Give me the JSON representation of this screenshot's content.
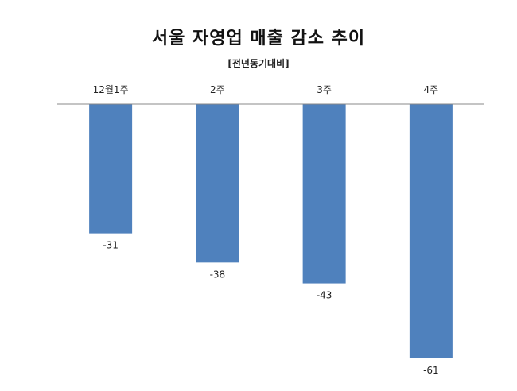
{
  "chart_data": {
    "type": "bar",
    "title": "서울 자영업 매출 감소 추이",
    "subtitle": "[전년동기대비]",
    "categories": [
      "12월1주",
      "2주",
      "3주",
      "4주"
    ],
    "values": [
      -31,
      -38,
      -43,
      -61
    ],
    "ylim": [
      -65,
      0
    ],
    "grid": false,
    "bar_color": "#4f81bd",
    "axis_color": "#888888"
  }
}
